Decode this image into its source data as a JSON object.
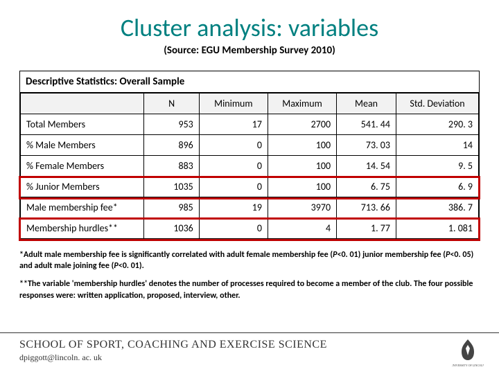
{
  "title": "Cluster analysis: variables",
  "subtitle": "(Source: EGU Membership Survey 2010)",
  "table": {
    "caption": "Descriptive Statistics: Overall Sample",
    "columns": [
      "",
      "N",
      "Minimum",
      "Maximum",
      "Mean",
      "Std. Deviation"
    ],
    "rows": [
      {
        "label": "Total Members",
        "n": "953",
        "min": "17",
        "max": "2700",
        "mean": "541. 44",
        "sd": "290. 3"
      },
      {
        "label": "% Male Members",
        "n": "896",
        "min": "0",
        "max": "100",
        "mean": "73. 03",
        "sd": "14"
      },
      {
        "label": "% Female Members",
        "n": "883",
        "min": "0",
        "max": "100",
        "mean": "14. 54",
        "sd": "9. 5"
      },
      {
        "label": "% Junior Members",
        "n": "1035",
        "min": "0",
        "max": "100",
        "mean": "6. 75",
        "sd": "6. 9"
      },
      {
        "label": "Male membership fee*",
        "n": "985",
        "min": "19",
        "max": "3970",
        "mean": "713. 66",
        "sd": "386. 7"
      },
      {
        "label": "Membership hurdles**",
        "n": "1036",
        "min": "0",
        "max": "4",
        "mean": "1. 77",
        "sd": "1. 081"
      }
    ]
  },
  "footnotes": {
    "f1_a": "*Adult male membership fee is significantly correlated with adult female membership fee (",
    "f1_b": "P",
    "f1_c": "<0. 01) junior membership fee (",
    "f1_d": "P",
    "f1_e": "<0. 05) and adult male joining fee (",
    "f1_f": "P",
    "f1_g": "<0. 01).",
    "f2": "**The variable 'membership hurdles' denotes the number of processes required to become a member of the club. The four possible responses were: written application, proposed, interview, other."
  },
  "footer": {
    "school": "SCHOOL OF SPORT, COACHING AND EXERCISE SCIENCE",
    "email": "dpiggott@lincoln. ac. uk"
  },
  "styling": {
    "title_color": "#008080",
    "highlight_color": "#c00000",
    "header_bg": "#f2f2f2",
    "border_color": "#000000"
  }
}
